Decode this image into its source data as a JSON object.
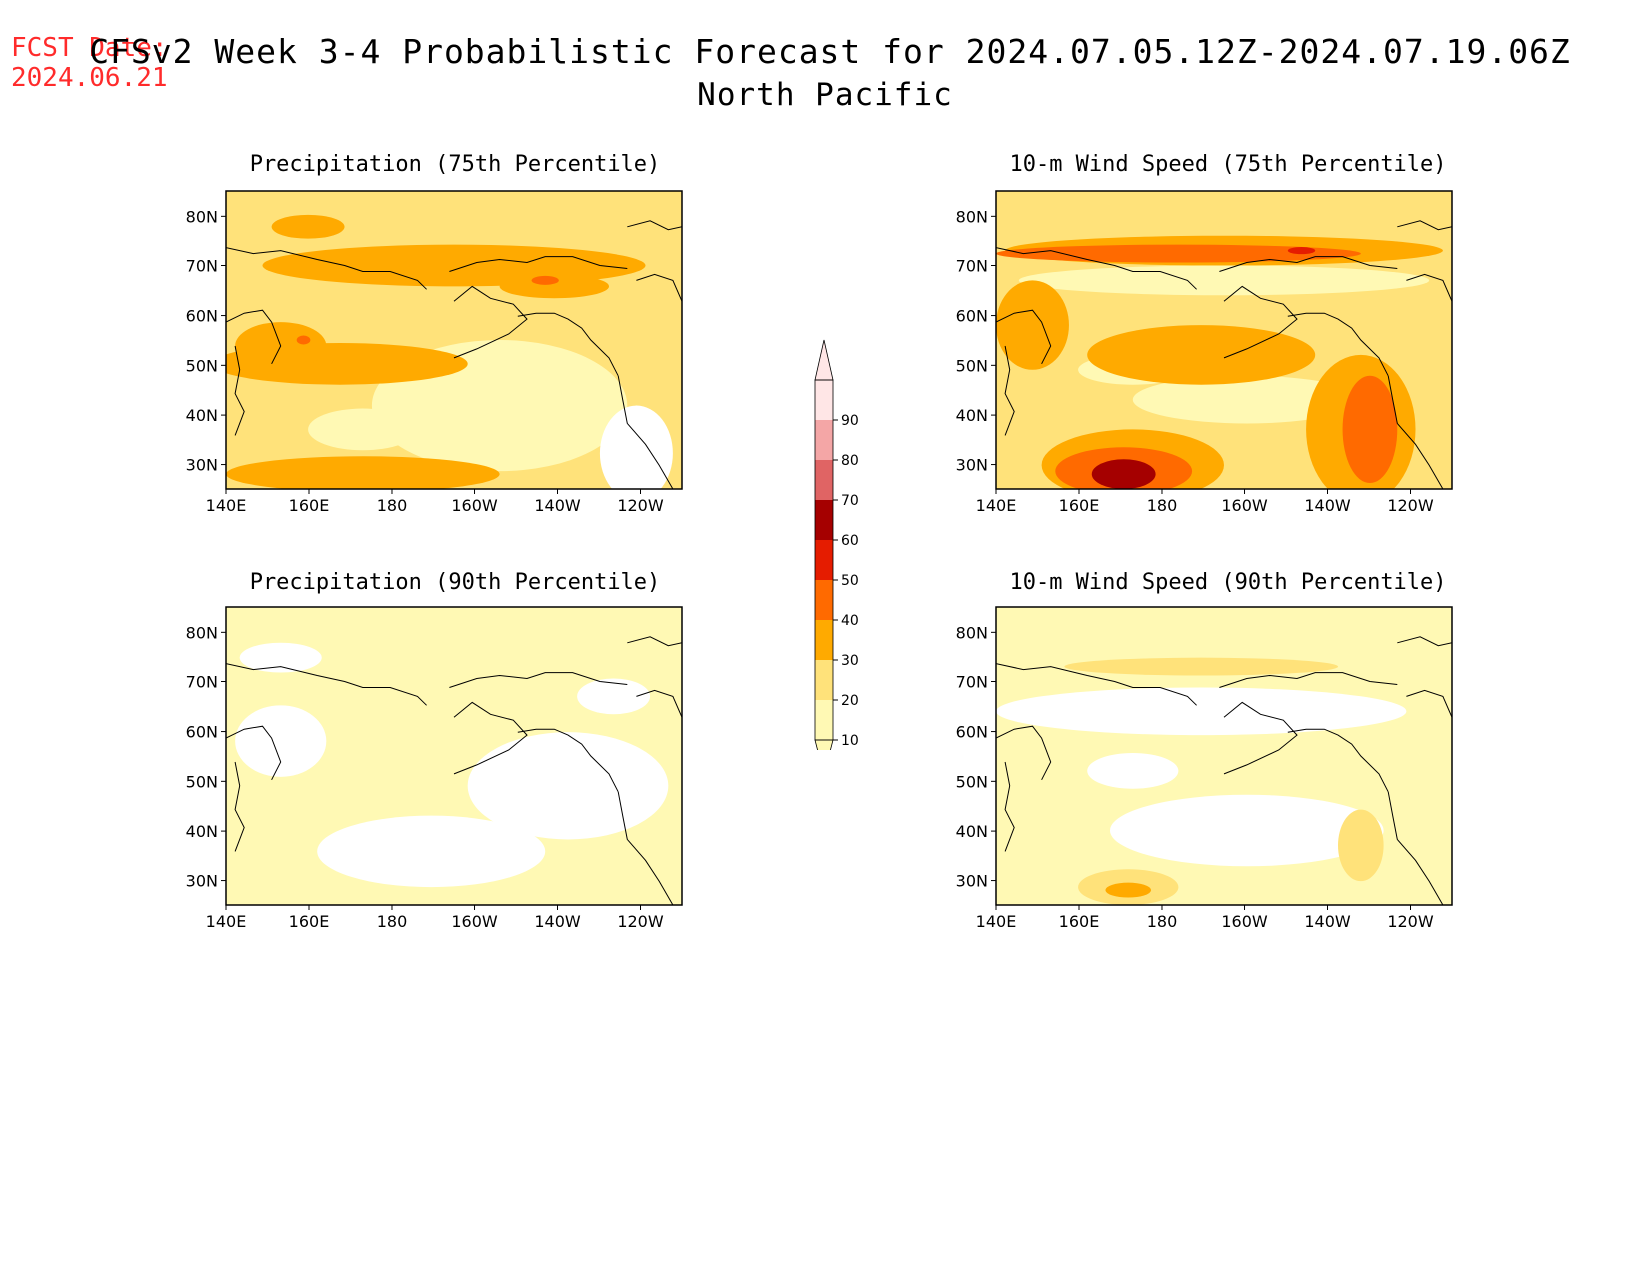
{
  "header": {
    "fcst_label": "FCST Date:",
    "fcst_date": "2024.06.21",
    "title": "CFSv2 Week 3-4 Probabilistic Forecast for 2024.07.05.12Z-2024.07.19.06Z",
    "subtitle": "North Pacific"
  },
  "panels": [
    {
      "title": "Precipitation (75th Percentile)"
    },
    {
      "title": "10-m Wind Speed (75th Percentile)"
    },
    {
      "title": "Precipitation (90th Percentile)"
    },
    {
      "title": "10-m Wind Speed (90th Percentile)"
    }
  ],
  "axes": {
    "lon_labels": [
      "140E",
      "160E",
      "180",
      "160W",
      "140W",
      "120W"
    ],
    "lat_labels": [
      "80N",
      "70N",
      "60N",
      "50N",
      "40N",
      "30N"
    ]
  },
  "colorbar": {
    "levels": [
      "10",
      "20",
      "30",
      "40",
      "50",
      "60",
      "70",
      "80",
      "90"
    ],
    "colors": [
      "#fff9b4",
      "#ffe27a",
      "#ffaa00",
      "#ff6a00",
      "#e51c00",
      "#a50000",
      "#e06464",
      "#f4a6a6",
      "#ffe6e6"
    ]
  }
}
